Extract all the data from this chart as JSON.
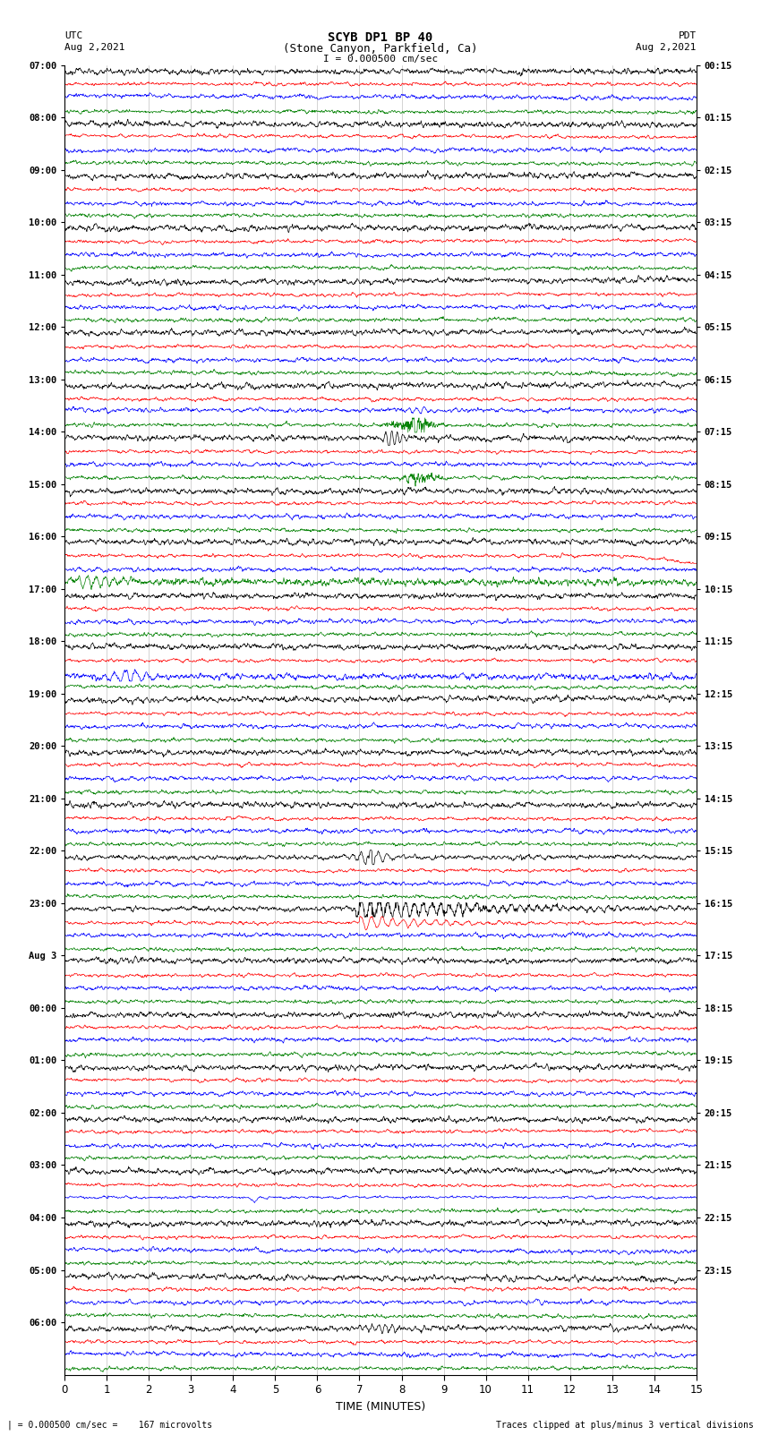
{
  "title_line1": "SCYB DP1 BP 40",
  "title_line2": "(Stone Canyon, Parkfield, Ca)",
  "scale_label": "I = 0.000500 cm/sec",
  "utc_label": "UTC",
  "pdt_label": "PDT",
  "date_left": "Aug 2,2021",
  "date_right": "Aug 2,2021",
  "xlabel": "TIME (MINUTES)",
  "bottom_left": "| = 0.000500 cm/sec =    167 microvolts",
  "bottom_right": "Traces clipped at plus/minus 3 vertical divisions",
  "left_times": [
    "07:00",
    "08:00",
    "09:00",
    "10:00",
    "11:00",
    "12:00",
    "13:00",
    "14:00",
    "15:00",
    "16:00",
    "17:00",
    "18:00",
    "19:00",
    "20:00",
    "21:00",
    "22:00",
    "23:00",
    "Aug 3",
    "00:00",
    "01:00",
    "02:00",
    "03:00",
    "04:00",
    "05:00",
    "06:00"
  ],
  "right_times": [
    "00:15",
    "01:15",
    "02:15",
    "03:15",
    "04:15",
    "05:15",
    "06:15",
    "07:15",
    "08:15",
    "09:15",
    "10:15",
    "11:15",
    "12:15",
    "13:15",
    "14:15",
    "15:15",
    "16:15",
    "17:15",
    "18:15",
    "19:15",
    "20:15",
    "21:15",
    "22:15",
    "23:15"
  ],
  "n_rows": 25,
  "n_traces_per_row": 4,
  "trace_colors": [
    "black",
    "red",
    "blue",
    "green"
  ],
  "bg_color": "white",
  "xlim": [
    0,
    15
  ],
  "xticks": [
    0,
    1,
    2,
    3,
    4,
    5,
    6,
    7,
    8,
    9,
    10,
    11,
    12,
    13,
    14,
    15
  ],
  "figsize": [
    8.5,
    16.13
  ],
  "dpi": 100
}
